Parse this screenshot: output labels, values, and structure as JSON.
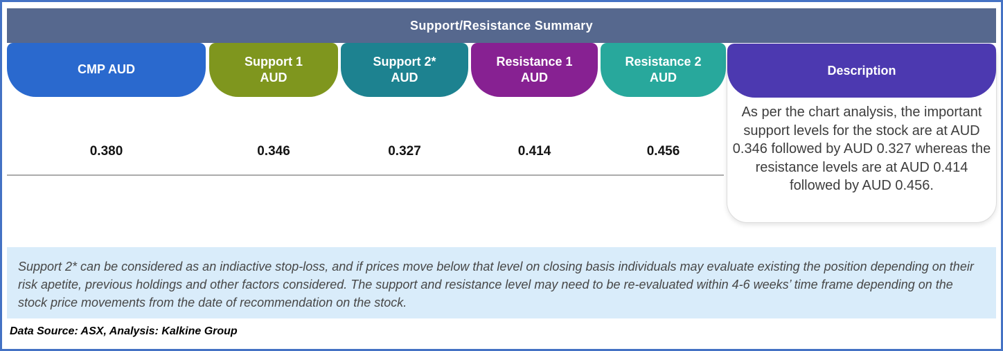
{
  "page": {
    "title": "Support/Resistance Summary"
  },
  "columns": [
    {
      "id": "cmp",
      "label": "CMP AUD",
      "value": "0.380",
      "color": "#2A69CE"
    },
    {
      "id": "support-1",
      "label": "Support 1\nAUD",
      "value": "0.346",
      "color": "#7F961E"
    },
    {
      "id": "support-2",
      "label": "Support 2*\nAUD",
      "value": "0.327",
      "color": "#1D8290"
    },
    {
      "id": "resistance-1",
      "label": "Resistance 1\nAUD",
      "value": "0.414",
      "color": "#872192"
    },
    {
      "id": "resistance-2",
      "label": "Resistance 2\nAUD",
      "value": "0.456",
      "color": "#28A89C"
    }
  ],
  "description": {
    "label": "Description",
    "color": "#4C39B0",
    "text": "As per the chart analysis, the important support levels for the stock are at AUD 0.346 followed by AUD 0.327 whereas the resistance levels are at AUD 0.414 followed by AUD 0.456."
  },
  "footnote": "Support 2* can be considered as an indiactive stop-loss, and if prices move below that level on closing basis individuals may evaluate existing the position depending on their risk apetite, previous holdings and other factors considered. The support and resistance level may need to be re-evaluated within 4-6 weeks’ time frame depending on the stock price movements from  the date of recommendation on the stock.",
  "data_source": "Data Source: ASX, Analysis: Kalkine Group",
  "colors": {
    "outer_border": "#4472C4",
    "title_bar": "#56688E",
    "note_background": "#D9ECFA",
    "divider": "#ABABAB"
  },
  "chart_data": {
    "type": "table",
    "title": "Support/Resistance Summary",
    "columns": [
      "CMP AUD",
      "Support 1 AUD",
      "Support 2* AUD",
      "Resistance 1 AUD",
      "Resistance 2 AUD"
    ],
    "rows": [
      [
        "0.380",
        "0.346",
        "0.327",
        "0.414",
        "0.456"
      ]
    ]
  }
}
